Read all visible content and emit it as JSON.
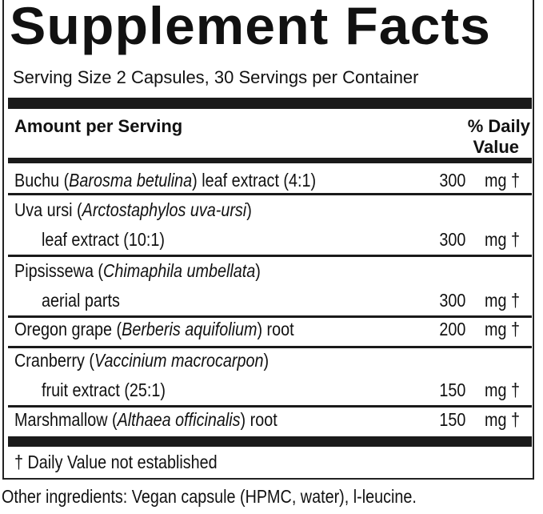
{
  "title": "Supplement Facts",
  "serving": "Serving Size 2 Capsules, 30 Servings per Container",
  "header": {
    "amount": "Amount per Serving",
    "dv_line1": "% Daily",
    "dv_line2": "Value"
  },
  "rows": [
    {
      "pre": "Buchu (",
      "latin": "Barosma betulina",
      "post": ") leaf extract (4:1)",
      "line2": "",
      "amount": "300",
      "unit": "mg †"
    },
    {
      "pre": "Uva ursi (",
      "latin": "Arctostaphylos uva-ursi",
      "post": ")",
      "line2": "leaf extract (10:1)",
      "amount": "300",
      "unit": "mg †"
    },
    {
      "pre": "Pipsissewa (",
      "latin": "Chimaphila umbellata",
      "post": ")",
      "line2": "aerial parts",
      "amount": "300",
      "unit": "mg †"
    },
    {
      "pre": "Oregon grape (",
      "latin": "Berberis aquifolium",
      "post": ") root",
      "line2": "",
      "amount": "200",
      "unit": "mg †"
    },
    {
      "pre": "Cranberry (",
      "latin": "Vaccinium macrocarpon",
      "post": ")",
      "line2": "fruit extract (25:1)",
      "amount": "150",
      "unit": "mg †"
    },
    {
      "pre": "Marshmallow (",
      "latin": "Althaea officinalis",
      "post": ") root",
      "line2": "",
      "amount": "150",
      "unit": "mg †"
    }
  ],
  "footnote": "† Daily Value not established",
  "other_ingredients": "Other ingredients: Vegan capsule (HPMC, water), l-leucine."
}
